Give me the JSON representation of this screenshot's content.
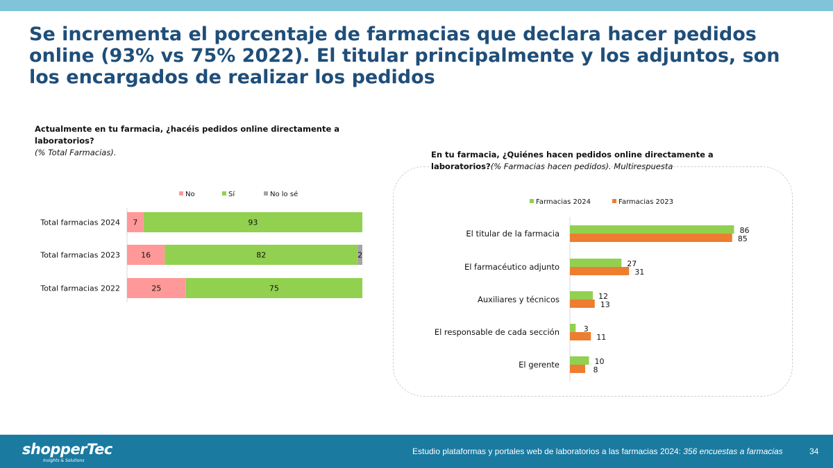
{
  "slide": {
    "title": "Se incrementa el porcentaje de farmacias que declara hacer pedidos online (93% vs 75% 2022). El titular principalmente y los adjuntos, son los encargados de realizar los pedidos"
  },
  "left": {
    "question": "Actualmente en tu farmacia, ¿hacéis pedidos online directamente a laboratorios?",
    "note": "(% Total Farmacias)."
  },
  "right": {
    "question_bold": "En tu farmacia, ¿Quiénes hacen pedidos online directamente a laboratorios?",
    "question_italic": "(% Farmacias hacen pedidos). Multirespuesta"
  },
  "footer": {
    "logo": "shopperTec",
    "logo_sub": "Insights & Solutions",
    "study": "Estudio plataformas y portales web de laboratorios a las farmacias 2024: ",
    "study_italic": "356 encuestas a farmacias",
    "page": "34"
  },
  "chart_data": [
    {
      "type": "bar",
      "orientation": "horizontal",
      "stacked": true,
      "legend_position": "top",
      "categories": [
        "Total farmacias 2024",
        "Total farmacias 2023",
        "Total farmacias 2022"
      ],
      "series": [
        {
          "name": "No",
          "color": "#ff9999",
          "values": [
            7,
            16,
            25
          ],
          "labels": [
            "7",
            "16",
            "25"
          ]
        },
        {
          "name": "Sí",
          "color": "#92d050",
          "values": [
            93,
            82,
            75
          ],
          "labels": [
            "93",
            "82",
            "75"
          ]
        },
        {
          "name": "No lo sé",
          "color": "#a5a5a5",
          "values": [
            0,
            2,
            0
          ],
          "labels": [
            "",
            "2",
            ""
          ]
        }
      ],
      "xlim": [
        0,
        100
      ],
      "grid": false
    },
    {
      "type": "bar",
      "orientation": "horizontal",
      "stacked": false,
      "legend_position": "top",
      "categories": [
        "El titular de la farmacia",
        "El farmacéutico adjunto",
        "Auxiliares y técnicos",
        "El responsable de cada sección",
        "El gerente"
      ],
      "series": [
        {
          "name": "Farmacias 2024",
          "color": "#92d050",
          "values": [
            86,
            27,
            12,
            3,
            10
          ]
        },
        {
          "name": "Farmacias 2023",
          "color": "#ed7d31",
          "values": [
            85,
            31,
            13,
            11,
            8
          ]
        }
      ],
      "xlim": [
        0,
        100
      ],
      "grid": false
    }
  ]
}
